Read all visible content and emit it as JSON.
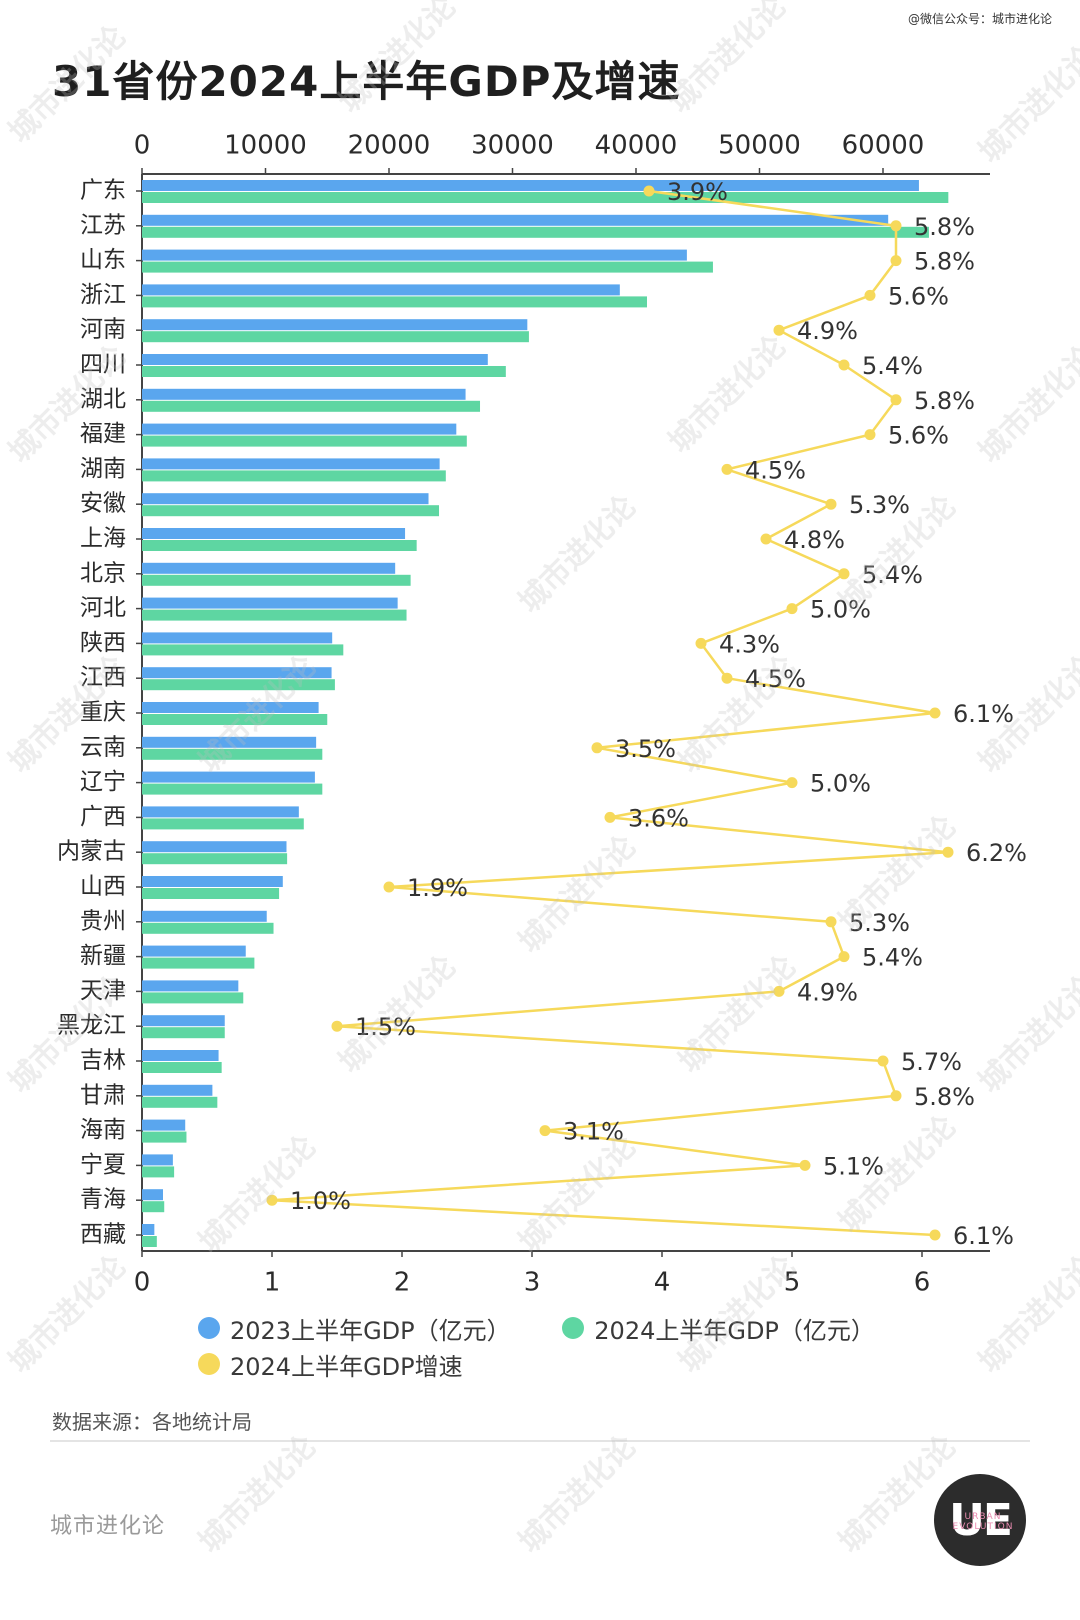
{
  "header": {
    "watermark": "@微信公众号：城市进化论",
    "title": "31省份2024上半年GDP及增速"
  },
  "colors": {
    "gdp2023": "#5aa6ee",
    "gdp2024": "#5ed6a2",
    "growth": "#f6d95b",
    "axis": "#444444",
    "label": "#2b2b2b"
  },
  "chart_data": {
    "type": "bar",
    "orientation": "horizontal",
    "categories": [
      "广东",
      "江苏",
      "山东",
      "浙江",
      "河南",
      "四川",
      "湖北",
      "福建",
      "湖南",
      "安徽",
      "上海",
      "北京",
      "河北",
      "陕西",
      "江西",
      "重庆",
      "云南",
      "辽宁",
      "广西",
      "内蒙古",
      "山西",
      "贵州",
      "新疆",
      "天津",
      "黑龙江",
      "吉林",
      "甘肃",
      "海南",
      "宁夏",
      "青海",
      "西藏"
    ],
    "series": [
      {
        "name": "2023上半年GDP（亿元）",
        "axis": "top",
        "values": [
          62910,
          60420,
          44120,
          38690,
          31200,
          28000,
          26200,
          25450,
          24100,
          23200,
          21300,
          20500,
          20700,
          15400,
          15350,
          14300,
          14100,
          14000,
          12700,
          11700,
          11400,
          10100,
          8400,
          7800,
          6700,
          6200,
          5700,
          3500,
          2500,
          1700,
          1000
        ]
      },
      {
        "name": "2024上半年GDP（亿元）",
        "axis": "top",
        "values": [
          65290,
          63720,
          46230,
          40890,
          31330,
          29460,
          27370,
          26300,
          24600,
          24050,
          22240,
          21750,
          21420,
          16300,
          15620,
          15000,
          14600,
          14600,
          13100,
          11750,
          11100,
          10650,
          9100,
          8200,
          6700,
          6450,
          6100,
          3600,
          2600,
          1800,
          1200
        ]
      },
      {
        "name": "2024上半年GDP增速",
        "axis": "bottom",
        "type": "line",
        "values": [
          3.9,
          5.8,
          5.8,
          5.6,
          4.9,
          5.4,
          5.8,
          5.6,
          4.5,
          5.3,
          4.8,
          5.4,
          5.0,
          4.3,
          4.5,
          6.1,
          3.5,
          5.0,
          3.6,
          6.2,
          1.9,
          5.3,
          5.4,
          4.9,
          1.5,
          5.7,
          5.8,
          3.1,
          5.1,
          1.0,
          6.1
        ]
      }
    ],
    "growth_labels": [
      "3.9%",
      "5.8%",
      "5.8%",
      "5.6%",
      "4.9%",
      "5.4%",
      "5.8%",
      "5.6%",
      "4.5%",
      "5.3%",
      "4.8%",
      "5.4%",
      "5.0%",
      "4.3%",
      "4.5%",
      "6.1%",
      "3.5%",
      "5.0%",
      "3.6%",
      "6.2%",
      "1.9%",
      "5.3%",
      "5.4%",
      "4.9%",
      "1.5%",
      "5.7%",
      "5.8%",
      "3.1%",
      "5.1%",
      "1.0%",
      "6.1%"
    ],
    "top_axis": {
      "ticks": [
        0,
        10000,
        20000,
        30000,
        40000,
        50000,
        60000
      ],
      "range": [
        0,
        68000
      ]
    },
    "bottom_axis": {
      "ticks": [
        0,
        1,
        2,
        3,
        4,
        5,
        6
      ],
      "range": [
        0,
        6.5
      ]
    },
    "legend_position": "bottom-left",
    "grid": false
  },
  "legend": {
    "items": [
      "2023上半年GDP（亿元）",
      "2024上半年GDP（亿元）",
      "2024上半年GDP增速"
    ]
  },
  "footer": {
    "source": "数据来源：各地统计局",
    "brand": "城市进化论",
    "logo_text": "UE",
    "logo_sub": "URBAN EVOLUTION"
  }
}
